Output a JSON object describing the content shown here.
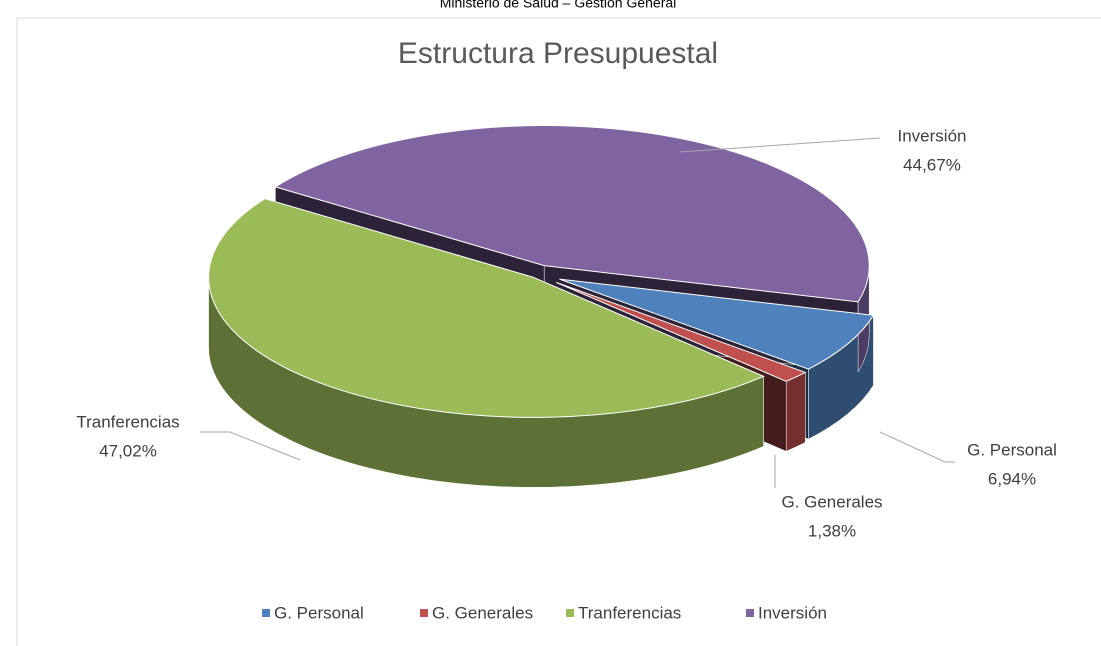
{
  "page_header": "Ministerio de Salud – Gestión General",
  "chart_data": {
    "type": "pie3d",
    "title": "Estructura Presupuestal",
    "categories": [
      "G. Personal",
      "G. Generales",
      "Tranferencias",
      "Inversión"
    ],
    "values": [
      6.94,
      1.38,
      47.02,
      44.67
    ],
    "value_labels": [
      "6,94%",
      "1,38%",
      "47,02%",
      "44,67%"
    ],
    "colors": [
      "#4f81bd",
      "#c0504d",
      "#9bbb59",
      "#8064a2"
    ],
    "legend": "bottom"
  }
}
